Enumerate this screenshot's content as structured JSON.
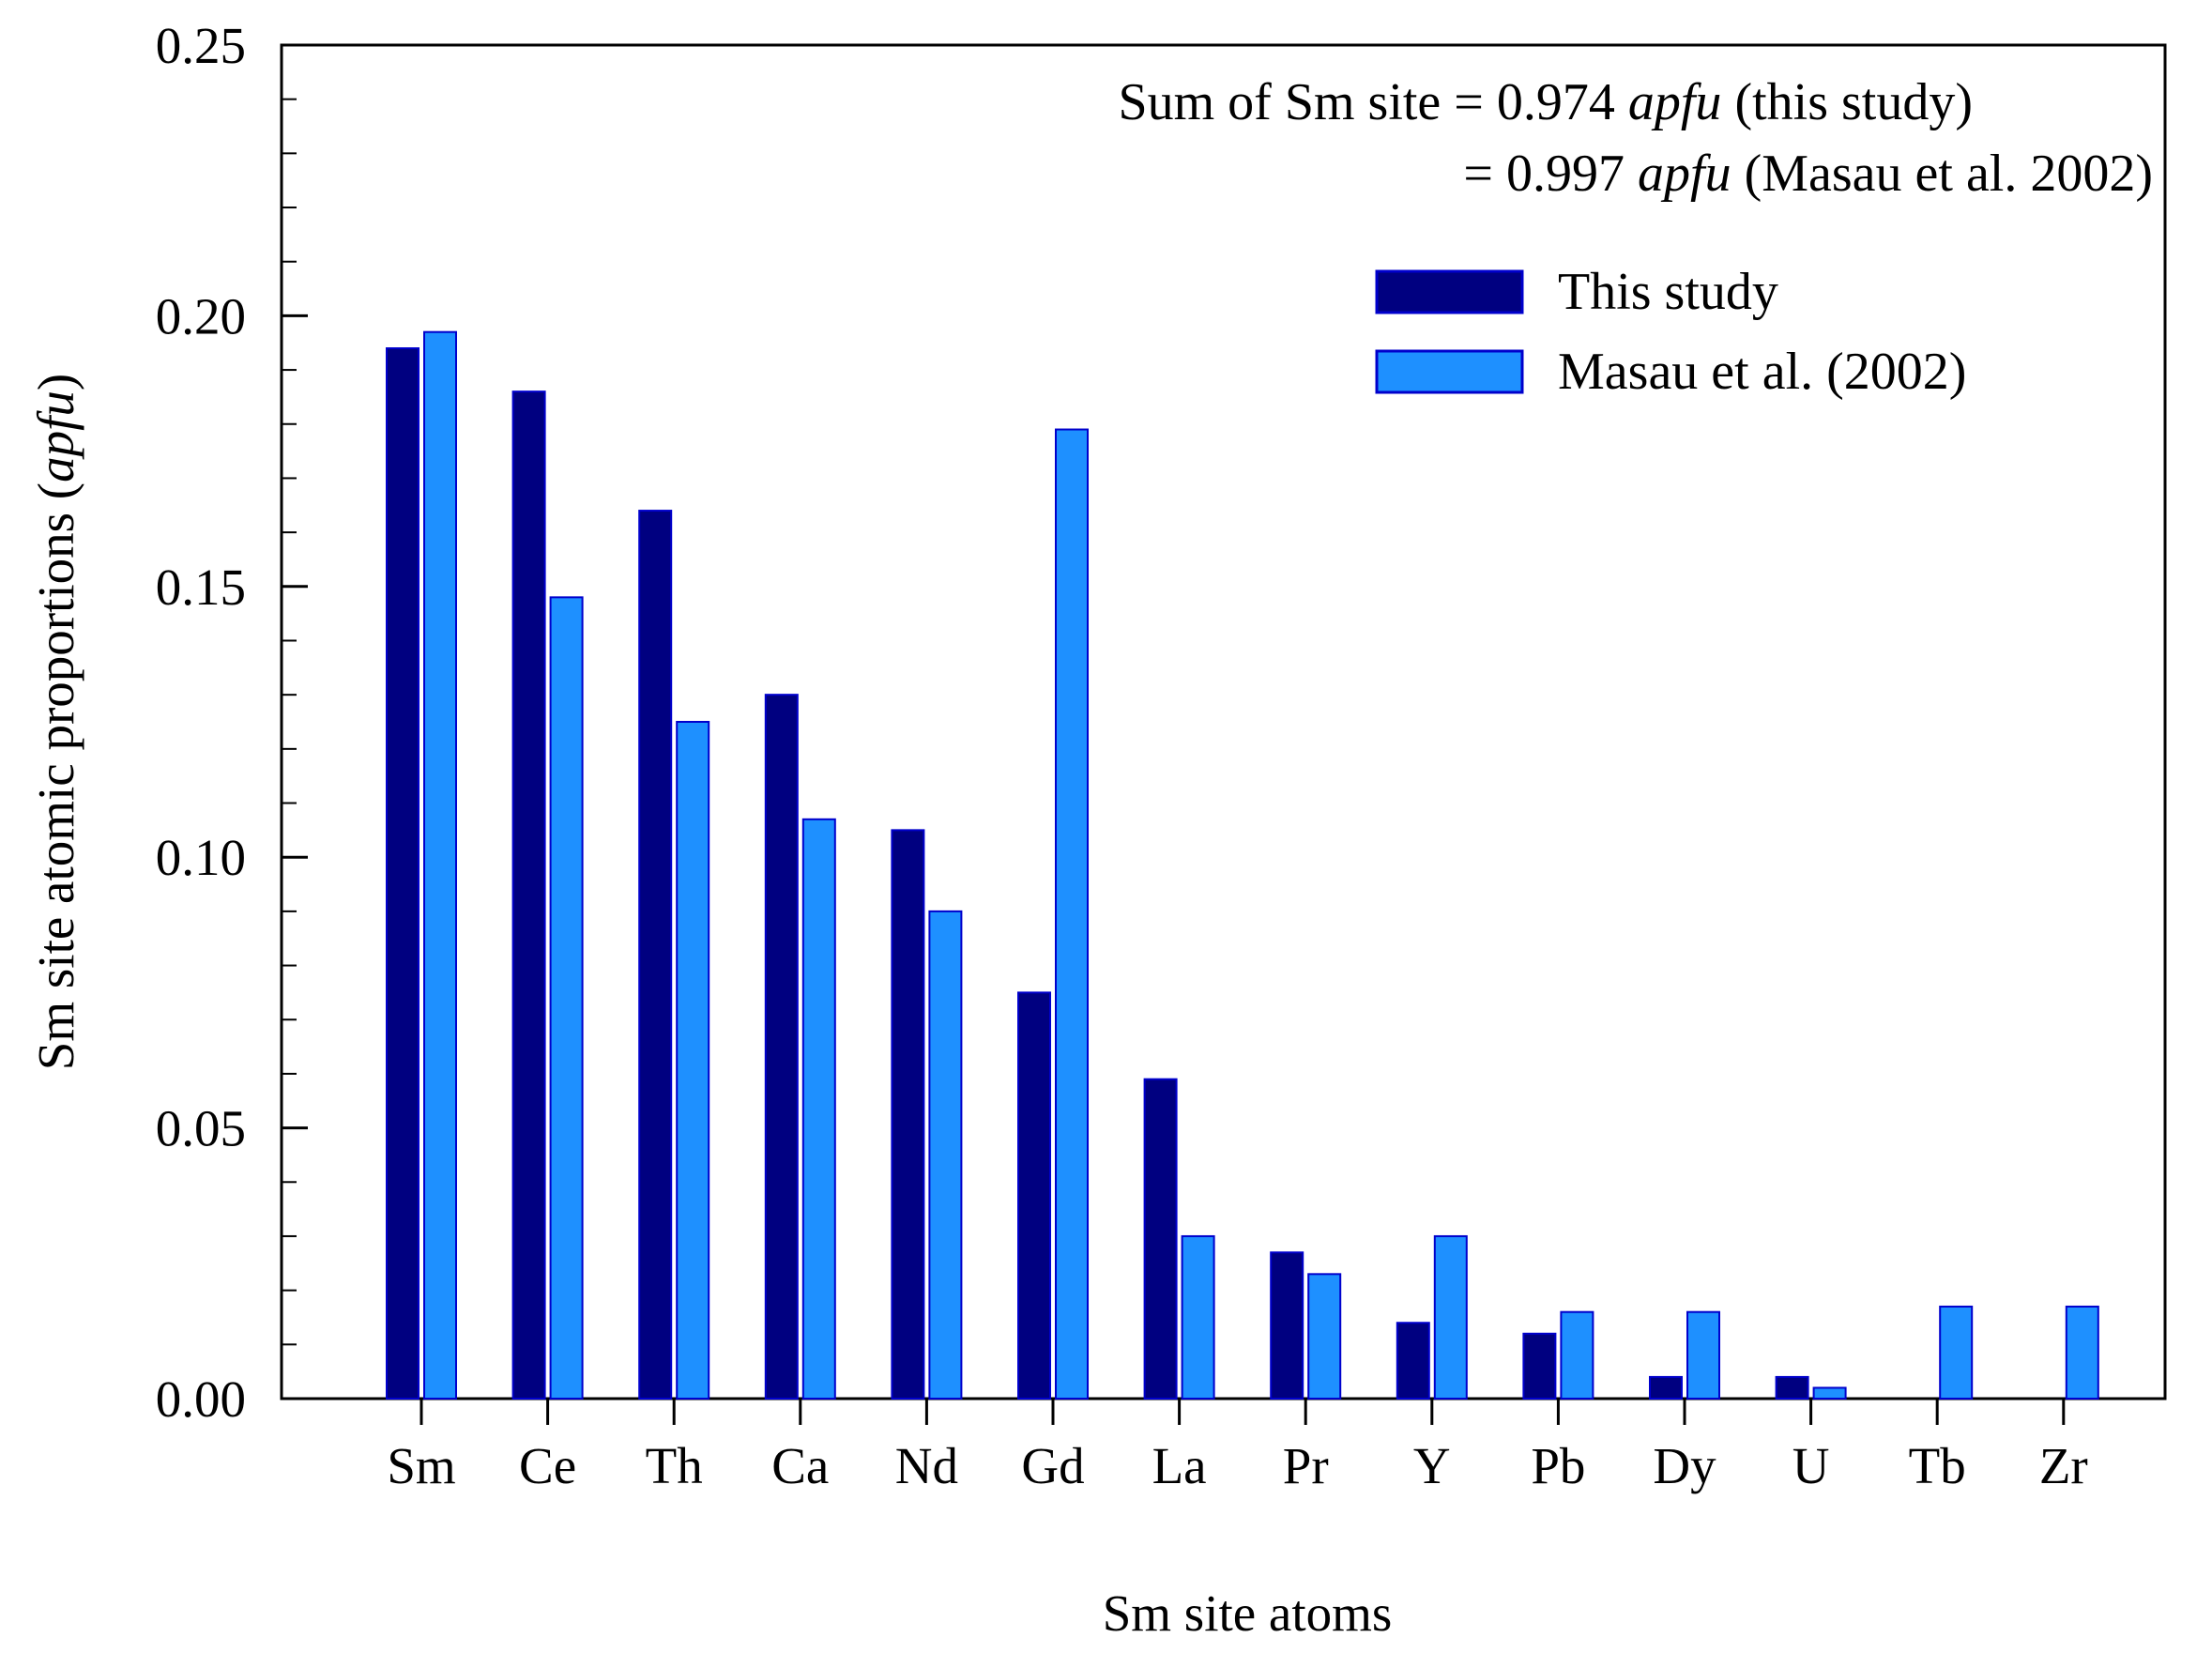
{
  "chart_data": {
    "type": "bar",
    "title": "",
    "xlabel": "Sm site atoms",
    "ylabel": {
      "prefix": "Sm site atomic proportions (",
      "italic": "apfu",
      "suffix": ")"
    },
    "ylim": [
      0,
      0.25
    ],
    "yticks": [
      "0.00",
      "0.05",
      "0.10",
      "0.15",
      "0.20",
      "0.25"
    ],
    "grid": false,
    "categories": [
      "Sm",
      "Ce",
      "Th",
      "Ca",
      "Nd",
      "Gd",
      "La",
      "Pr",
      "Y",
      "Pb",
      "Dy",
      "U",
      "Tb",
      "Zr"
    ],
    "series": [
      {
        "name": "This study",
        "color": "#000080",
        "values": [
          0.194,
          0.186,
          0.164,
          0.13,
          0.105,
          0.075,
          0.059,
          0.027,
          0.014,
          0.012,
          0.004,
          0.004,
          0.0,
          0.0
        ]
      },
      {
        "name": "Masau et al. (2002)",
        "color": "#1E90FF",
        "values": [
          0.197,
          0.148,
          0.125,
          0.107,
          0.09,
          0.179,
          0.03,
          0.023,
          0.03,
          0.016,
          0.016,
          0.002,
          0.017,
          0.017
        ]
      }
    ],
    "legend": {
      "placement": "top-right"
    },
    "annotations": [
      {
        "prefix": "Sum of Sm site = 0.974 ",
        "italic": "apfu",
        "suffix": " (this study)"
      },
      {
        "prefix": "= 0.997 ",
        "italic": "apfu",
        "suffix": " (Masau et al. 2002)"
      }
    ]
  }
}
